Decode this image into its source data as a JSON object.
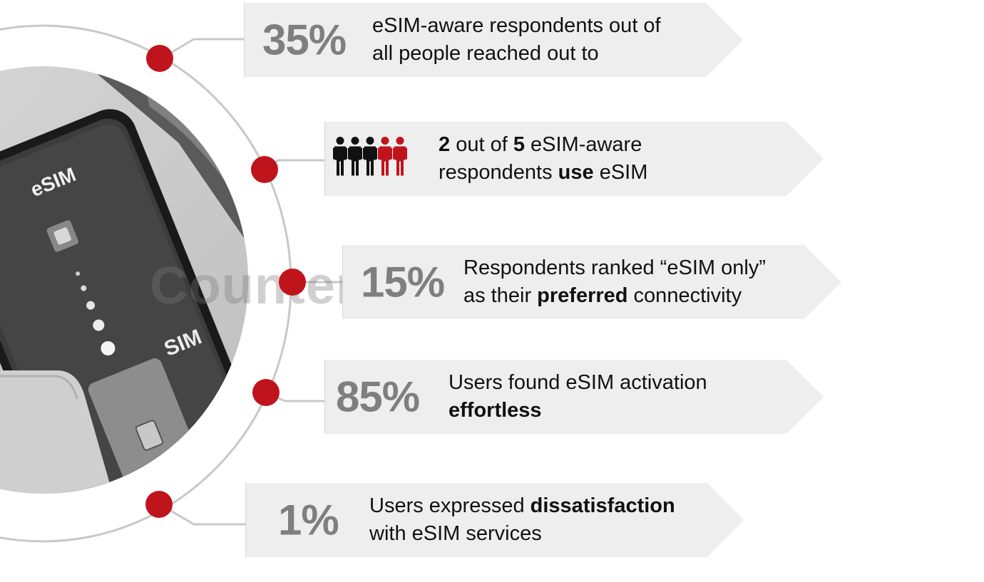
{
  "photo": {
    "screen_label": "eSIM",
    "card_label": "SIM"
  },
  "watermark": {
    "text": "Counterpoint"
  },
  "colors": {
    "accent": "#c0141c",
    "stat_gray": "#7f7f7f",
    "banner_bg": "#eeeeee",
    "dark_icon": "#111111"
  },
  "stats": [
    {
      "value": "35%",
      "text_html": "eSIM-aware respondents out of<br>all people reached out to"
    },
    {
      "value": "",
      "icon": "people-group-icon",
      "text_html": "<b>2</b> out of <b>5</b> eSIM-aware<br>respondents <b>use</b> eSIM"
    },
    {
      "value": "15%",
      "text_html": "Respondents ranked “eSIM only”<br>as their <b>preferred</b> connectivity"
    },
    {
      "value": "85%",
      "text_html": "Users found eSIM activation<br><b>effortless</b>"
    },
    {
      "value": "1%",
      "text_html": "Users expressed <b>dissatisfaction</b><br>with eSIM services"
    }
  ],
  "people_icon": {
    "total": 5,
    "highlighted": 2
  }
}
